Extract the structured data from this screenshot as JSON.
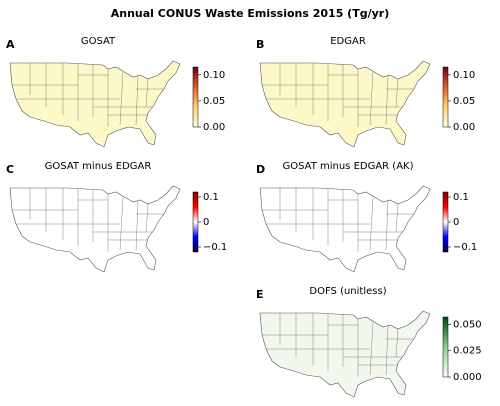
{
  "title": "Annual CONUS Waste Emissions 2015 (Tg/yr)",
  "chart_data": [
    {
      "type": "map",
      "label": "A",
      "title": "GOSAT",
      "colormap": "YlOrRd",
      "clim": [
        0,
        0.115
      ],
      "ticks": [
        {
          "value": 0,
          "label": "0.00"
        },
        {
          "value": 0.05,
          "label": "0.05"
        },
        {
          "value": 0.1,
          "label": "0.10"
        }
      ]
    },
    {
      "type": "map",
      "label": "B",
      "title": "EDGAR",
      "colormap": "YlOrRd",
      "clim": [
        0,
        0.115
      ],
      "ticks": [
        {
          "value": 0,
          "label": "0.00"
        },
        {
          "value": 0.05,
          "label": "0.05"
        },
        {
          "value": 0.1,
          "label": "0.10"
        }
      ]
    },
    {
      "type": "map",
      "label": "C",
      "title": "GOSAT minus EDGAR",
      "colormap": "seismic",
      "clim": [
        -0.12,
        0.12
      ],
      "ticks": [
        {
          "value": -0.1,
          "label": "−0.1"
        },
        0.0,
        0.1
      ]
    },
    {
      "type": "map",
      "label": "D",
      "title": "GOSAT minus EDGAR (AK)",
      "colormap": "seismic",
      "clim": [
        -0.12,
        0.12
      ],
      "ticks": [
        {
          "value": -0.1,
          "label": "−0.1"
        },
        0.0,
        0.1
      ]
    },
    {
      "type": "map",
      "label": "E",
      "title": "DOFS (unitless)",
      "colormap": "Greens",
      "clim": [
        0,
        0.057
      ],
      "ticks": [
        {
          "value": 0,
          "label": "0.000"
        },
        {
          "value": 0.025,
          "label": "0.025"
        },
        {
          "value": 0.05,
          "label": "0.050"
        }
      ]
    }
  ]
}
